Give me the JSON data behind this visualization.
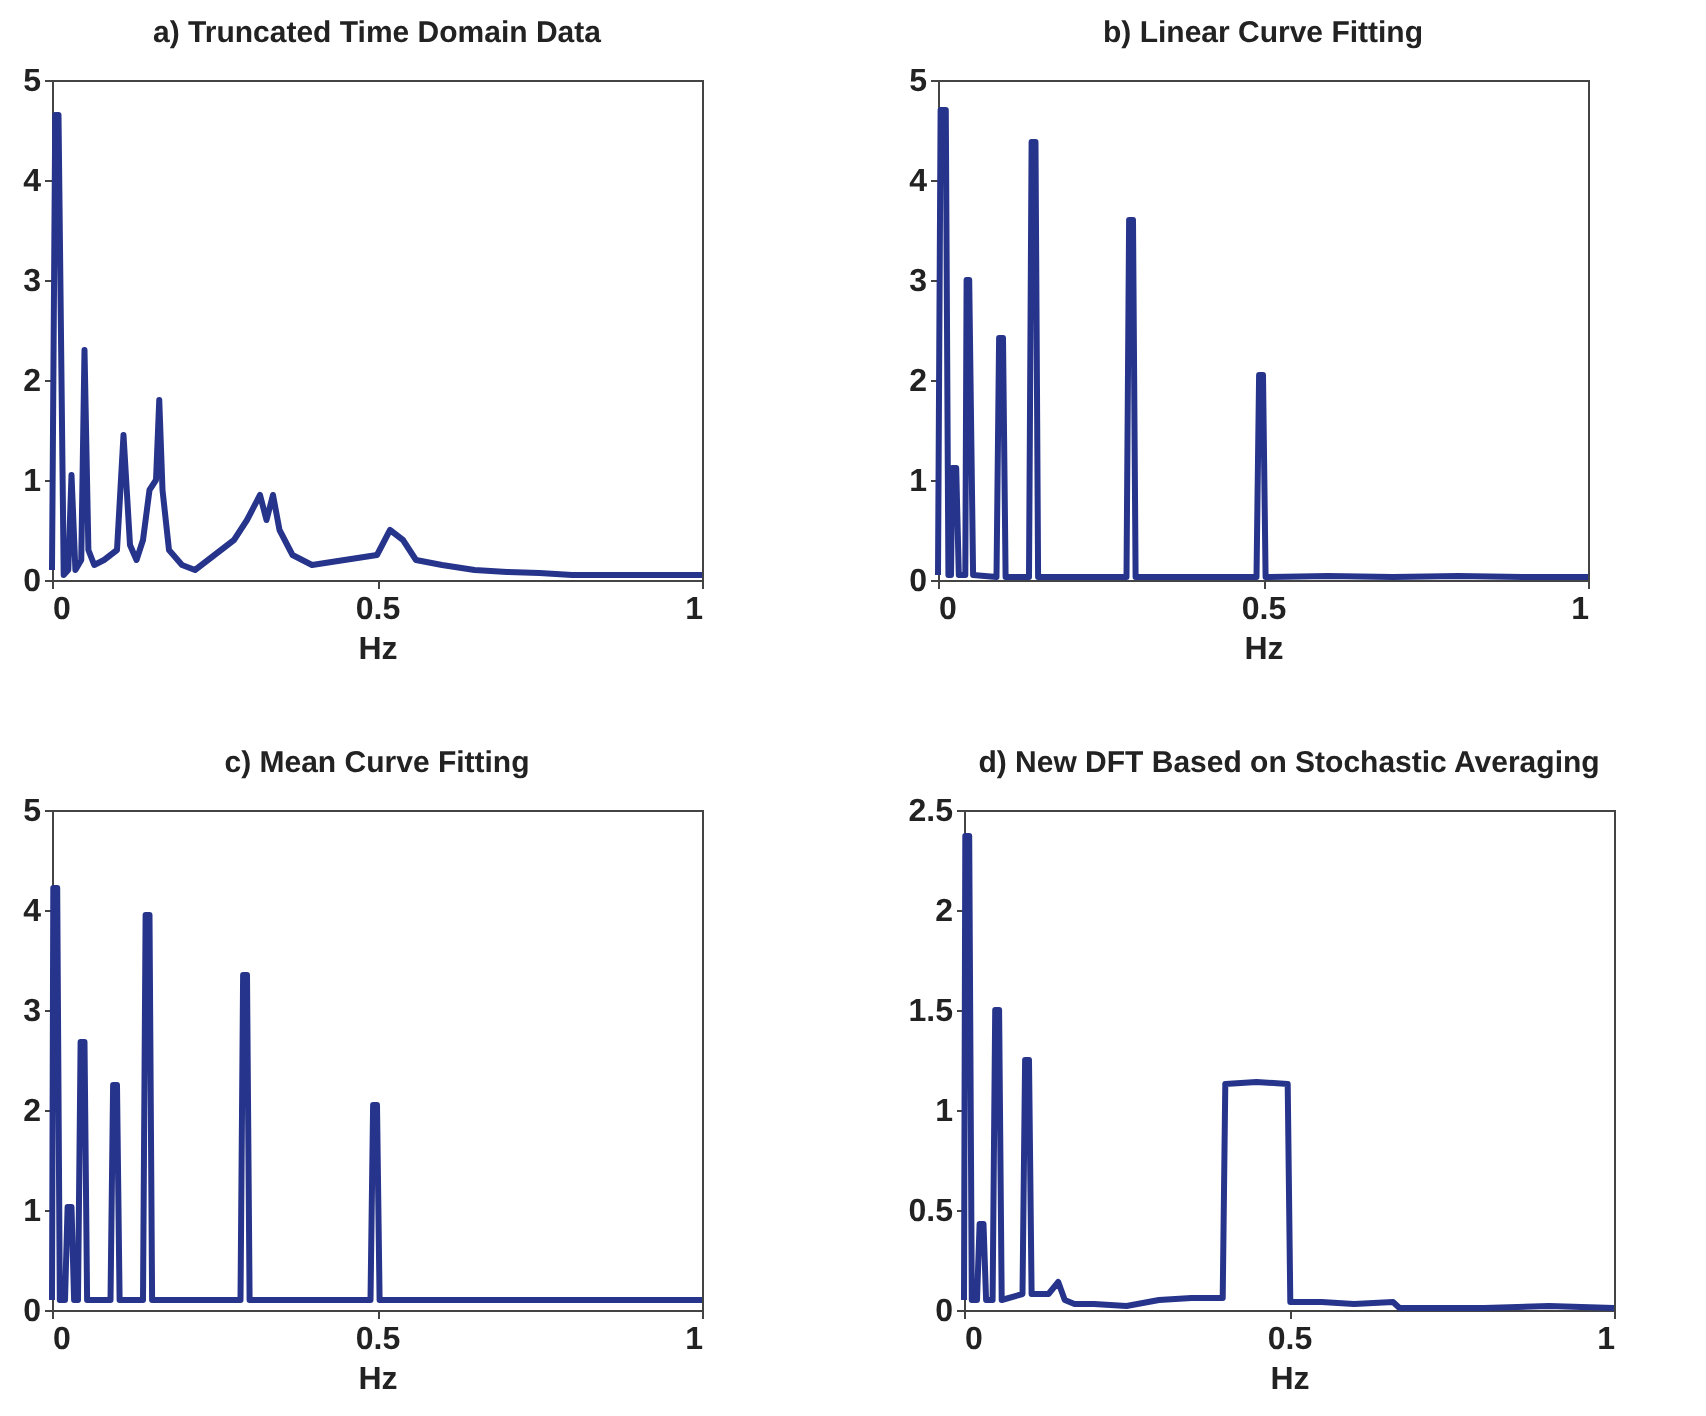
{
  "chart_data": [
    {
      "type": "line",
      "title": "a) Truncated Time Domain Data",
      "xlabel": "Hz",
      "xlim": [
        0,
        1
      ],
      "xticks": [
        0,
        0.5,
        1
      ],
      "ylim": [
        0,
        5
      ],
      "yticks": [
        0,
        1,
        2,
        3,
        4,
        5
      ],
      "series": [
        {
          "color": "#27348b",
          "x": [
            0,
            0.005,
            0.01,
            0.018,
            0.025,
            0.03,
            0.036,
            0.045,
            0.05,
            0.056,
            0.065,
            0.08,
            0.1,
            0.11,
            0.12,
            0.13,
            0.14,
            0.15,
            0.16,
            0.165,
            0.17,
            0.18,
            0.2,
            0.22,
            0.25,
            0.28,
            0.3,
            0.32,
            0.33,
            0.34,
            0.35,
            0.37,
            0.4,
            0.45,
            0.5,
            0.52,
            0.54,
            0.56,
            0.6,
            0.65,
            0.7,
            0.75,
            0.8,
            0.9,
            1.0
          ],
          "values": [
            0.1,
            4.65,
            4.65,
            0.05,
            0.1,
            1.05,
            0.1,
            0.2,
            2.3,
            0.3,
            0.15,
            0.2,
            0.3,
            1.45,
            0.35,
            0.2,
            0.4,
            0.9,
            1.0,
            1.8,
            0.9,
            0.3,
            0.15,
            0.1,
            0.25,
            0.4,
            0.6,
            0.85,
            0.6,
            0.85,
            0.5,
            0.25,
            0.15,
            0.2,
            0.25,
            0.5,
            0.4,
            0.2,
            0.15,
            0.1,
            0.08,
            0.07,
            0.05,
            0.05,
            0.05
          ]
        }
      ]
    },
    {
      "type": "line",
      "title": "b) Linear Curve Fitting",
      "xlabel": "Hz",
      "xlim": [
        0,
        1
      ],
      "xticks": [
        0,
        0.5,
        1
      ],
      "ylim": [
        0,
        5
      ],
      "yticks": [
        0,
        1,
        2,
        3,
        4,
        5
      ],
      "series": [
        {
          "color": "#27348b",
          "x": [
            0,
            0.004,
            0.012,
            0.016,
            0.02,
            0.022,
            0.028,
            0.032,
            0.042,
            0.044,
            0.048,
            0.054,
            0.09,
            0.094,
            0.1,
            0.104,
            0.14,
            0.144,
            0.15,
            0.154,
            0.29,
            0.294,
            0.3,
            0.304,
            0.49,
            0.494,
            0.5,
            0.504,
            0.6,
            0.7,
            0.8,
            0.9,
            1.0
          ],
          "values": [
            0.05,
            4.7,
            4.7,
            0.05,
            0.05,
            1.12,
            1.12,
            0.05,
            0.05,
            3.0,
            3.0,
            0.05,
            0.03,
            2.42,
            2.42,
            0.03,
            0.03,
            4.38,
            4.38,
            0.03,
            0.03,
            3.6,
            3.6,
            0.03,
            0.03,
            2.05,
            2.05,
            0.03,
            0.04,
            0.03,
            0.04,
            0.03,
            0.03
          ]
        }
      ]
    },
    {
      "type": "line",
      "title": "c) Mean Curve Fitting",
      "xlabel": "Hz",
      "xlim": [
        0,
        1
      ],
      "xticks": [
        0,
        0.5,
        1
      ],
      "ylim": [
        0,
        5
      ],
      "yticks": [
        0,
        1,
        2,
        3,
        4,
        5
      ],
      "series": [
        {
          "color": "#27348b",
          "x": [
            0,
            0.002,
            0.008,
            0.012,
            0.02,
            0.024,
            0.03,
            0.034,
            0.04,
            0.044,
            0.05,
            0.054,
            0.09,
            0.094,
            0.1,
            0.104,
            0.14,
            0.144,
            0.15,
            0.154,
            0.29,
            0.294,
            0.3,
            0.304,
            0.49,
            0.494,
            0.5,
            0.504,
            0.6,
            0.7,
            0.8,
            0.9,
            1.0
          ],
          "values": [
            0.1,
            4.22,
            4.22,
            0.1,
            0.1,
            1.03,
            1.03,
            0.1,
            0.1,
            2.68,
            2.68,
            0.1,
            0.1,
            2.25,
            2.25,
            0.1,
            0.1,
            3.95,
            3.95,
            0.1,
            0.1,
            3.35,
            3.35,
            0.1,
            0.1,
            2.05,
            2.05,
            0.1,
            0.1,
            0.1,
            0.1,
            0.1,
            0.1
          ]
        }
      ]
    },
    {
      "type": "line",
      "title": "d) New DFT Based on Stochastic Averaging",
      "xlabel": "Hz",
      "xlim": [
        0,
        1
      ],
      "xticks": [
        0,
        0.5,
        1
      ],
      "ylim": [
        0,
        2.5
      ],
      "yticks": [
        0,
        0.5,
        1,
        1.5,
        2,
        2.5
      ],
      "series": [
        {
          "color": "#27348b",
          "x": [
            0,
            0.002,
            0.008,
            0.012,
            0.02,
            0.024,
            0.03,
            0.034,
            0.044,
            0.048,
            0.054,
            0.058,
            0.09,
            0.094,
            0.1,
            0.104,
            0.13,
            0.145,
            0.155,
            0.17,
            0.2,
            0.25,
            0.3,
            0.35,
            0.398,
            0.402,
            0.45,
            0.498,
            0.502,
            0.55,
            0.6,
            0.66,
            0.67,
            0.8,
            0.9,
            1.0
          ],
          "values": [
            0.05,
            2.37,
            2.37,
            0.05,
            0.05,
            0.43,
            0.43,
            0.05,
            0.05,
            1.5,
            1.5,
            0.05,
            0.08,
            1.25,
            1.25,
            0.08,
            0.08,
            0.14,
            0.05,
            0.03,
            0.03,
            0.02,
            0.05,
            0.06,
            0.06,
            1.13,
            1.14,
            1.13,
            0.04,
            0.04,
            0.03,
            0.04,
            0.01,
            0.01,
            0.02,
            0.01
          ]
        }
      ]
    }
  ]
}
